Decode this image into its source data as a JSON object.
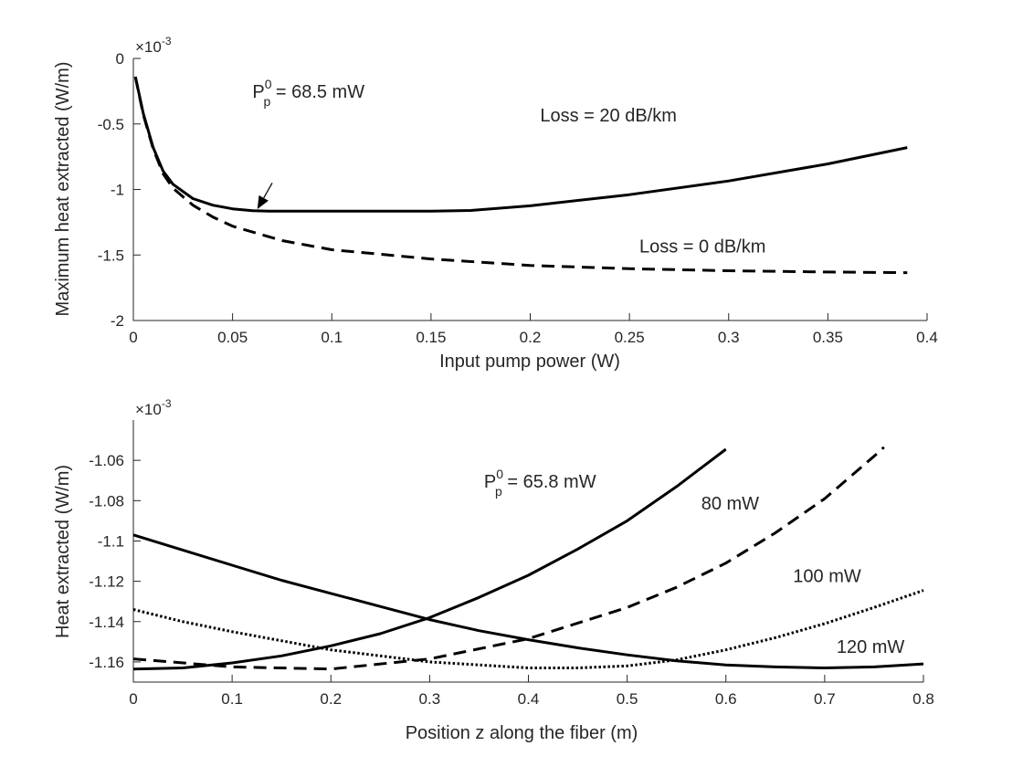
{
  "colors": {
    "axis": "#262626",
    "series": "#000000",
    "background": "#ffffff"
  },
  "chart_data": [
    {
      "type": "line",
      "xlabel": "Input pump power (W)",
      "ylabel": "Maximum heat extracted (W/m)",
      "exponent_label": "×10",
      "exponent_power": "-3",
      "xlim": [
        0,
        0.4
      ],
      "ylim": [
        -2,
        0
      ],
      "x_ticks": [
        "0",
        "0.05",
        "0.1",
        "0.15",
        "0.2",
        "0.25",
        "0.3",
        "0.35",
        "0.4"
      ],
      "y_ticks": [
        "0",
        "-0.5",
        "-1",
        "-1.5",
        "-2"
      ],
      "series": [
        {
          "name": "Loss = 20 dB/km",
          "style": "solid",
          "points": [
            [
              0.001,
              -0.14
            ],
            [
              0.005,
              -0.42
            ],
            [
              0.01,
              -0.68
            ],
            [
              0.015,
              -0.86
            ],
            [
              0.02,
              -0.96
            ],
            [
              0.03,
              -1.07
            ],
            [
              0.04,
              -1.12
            ],
            [
              0.05,
              -1.148
            ],
            [
              0.06,
              -1.162
            ],
            [
              0.0685,
              -1.165
            ],
            [
              0.1,
              -1.165
            ],
            [
              0.15,
              -1.165
            ],
            [
              0.17,
              -1.16
            ],
            [
              0.2,
              -1.125
            ],
            [
              0.25,
              -1.04
            ],
            [
              0.3,
              -0.935
            ],
            [
              0.35,
              -0.805
            ],
            [
              0.39,
              -0.68
            ]
          ]
        },
        {
          "name": "Loss = 0 dB/km",
          "style": "dashed",
          "points": [
            [
              0.001,
              -0.14
            ],
            [
              0.005,
              -0.43
            ],
            [
              0.01,
              -0.69
            ],
            [
              0.015,
              -0.88
            ],
            [
              0.02,
              -0.99
            ],
            [
              0.03,
              -1.12
            ],
            [
              0.04,
              -1.21
            ],
            [
              0.05,
              -1.28
            ],
            [
              0.075,
              -1.39
            ],
            [
              0.1,
              -1.46
            ],
            [
              0.15,
              -1.53
            ],
            [
              0.2,
              -1.58
            ],
            [
              0.25,
              -1.605
            ],
            [
              0.3,
              -1.62
            ],
            [
              0.35,
              -1.63
            ],
            [
              0.39,
              -1.635
            ]
          ]
        }
      ],
      "annotations": [
        {
          "text": "Loss = 20 dB/km",
          "x": 0.205,
          "y": -0.48
        },
        {
          "text": "Loss = 0 dB/km",
          "x": 0.255,
          "y": -1.48
        },
        {
          "base": "P",
          "sup": "0",
          "sub": "p",
          "rest": " = 68.5 mW",
          "x": 0.06,
          "y": -0.3
        }
      ],
      "arrow": {
        "from": [
          0.07,
          -0.95
        ],
        "to": [
          0.0625,
          -1.15
        ]
      }
    },
    {
      "type": "line",
      "xlabel": "Position z along the fiber (m)",
      "ylabel": "Heat extracted (W/m)",
      "exponent_label": "×10",
      "exponent_power": "-3",
      "xlim": [
        0,
        0.8
      ],
      "ylim": [
        -1.17,
        -1.04
      ],
      "x_ticks": [
        "0",
        "0.1",
        "0.2",
        "0.3",
        "0.4",
        "0.5",
        "0.6",
        "0.7",
        "0.8"
      ],
      "y_ticks": [
        "-1.06",
        "-1.08",
        "-1.1",
        "-1.12",
        "-1.14",
        "-1.16"
      ],
      "series": [
        {
          "name": "65.8 mW",
          "style": "solid",
          "points": [
            [
              0,
              -1.1635
            ],
            [
              0.05,
              -1.163
            ],
            [
              0.1,
              -1.1605
            ],
            [
              0.15,
              -1.157
            ],
            [
              0.2,
              -1.152
            ],
            [
              0.25,
              -1.146
            ],
            [
              0.3,
              -1.138
            ],
            [
              0.35,
              -1.128
            ],
            [
              0.4,
              -1.117
            ],
            [
              0.45,
              -1.104
            ],
            [
              0.5,
              -1.09
            ],
            [
              0.55,
              -1.073
            ],
            [
              0.6,
              -1.0545
            ]
          ]
        },
        {
          "name": "80 mW",
          "style": "dashed",
          "points": [
            [
              0,
              -1.1585
            ],
            [
              0.1,
              -1.1625
            ],
            [
              0.2,
              -1.1635
            ],
            [
              0.3,
              -1.1585
            ],
            [
              0.4,
              -1.1485
            ],
            [
              0.5,
              -1.133
            ],
            [
              0.55,
              -1.123
            ],
            [
              0.6,
              -1.111
            ],
            [
              0.65,
              -1.096
            ],
            [
              0.7,
              -1.079
            ],
            [
              0.75,
              -1.058
            ],
            [
              0.76,
              -1.0535
            ]
          ]
        },
        {
          "name": "100 mW",
          "style": "dotted",
          "points": [
            [
              0,
              -1.134
            ],
            [
              0.05,
              -1.14
            ],
            [
              0.1,
              -1.145
            ],
            [
              0.2,
              -1.154
            ],
            [
              0.3,
              -1.16
            ],
            [
              0.4,
              -1.163
            ],
            [
              0.45,
              -1.163
            ],
            [
              0.5,
              -1.162
            ],
            [
              0.55,
              -1.159
            ],
            [
              0.6,
              -1.154
            ],
            [
              0.65,
              -1.148
            ],
            [
              0.7,
              -1.141
            ],
            [
              0.75,
              -1.133
            ],
            [
              0.8,
              -1.1245
            ]
          ]
        },
        {
          "name": "120 mW",
          "style": "solid",
          "points": [
            [
              0,
              -1.097
            ],
            [
              0.05,
              -1.1045
            ],
            [
              0.1,
              -1.112
            ],
            [
              0.15,
              -1.1195
            ],
            [
              0.2,
              -1.126
            ],
            [
              0.25,
              -1.1325
            ],
            [
              0.3,
              -1.139
            ],
            [
              0.35,
              -1.1445
            ],
            [
              0.4,
              -1.149
            ],
            [
              0.45,
              -1.153
            ],
            [
              0.5,
              -1.1565
            ],
            [
              0.55,
              -1.1595
            ],
            [
              0.6,
              -1.1615
            ],
            [
              0.65,
              -1.1625
            ],
            [
              0.7,
              -1.163
            ],
            [
              0.75,
              -1.1625
            ],
            [
              0.8,
              -1.161
            ]
          ]
        }
      ],
      "annotations": [
        {
          "base": "P",
          "sup": "0",
          "sub": "p",
          "rest": " = 65.8 mW",
          "x": 0.355,
          "y": -1.0735
        },
        {
          "text": "80 mW",
          "x": 0.575,
          "y": -1.0845
        },
        {
          "text": "100 mW",
          "x": 0.668,
          "y": -1.1205
        },
        {
          "text": "120 mW",
          "x": 0.712,
          "y": -1.1555
        }
      ]
    }
  ]
}
